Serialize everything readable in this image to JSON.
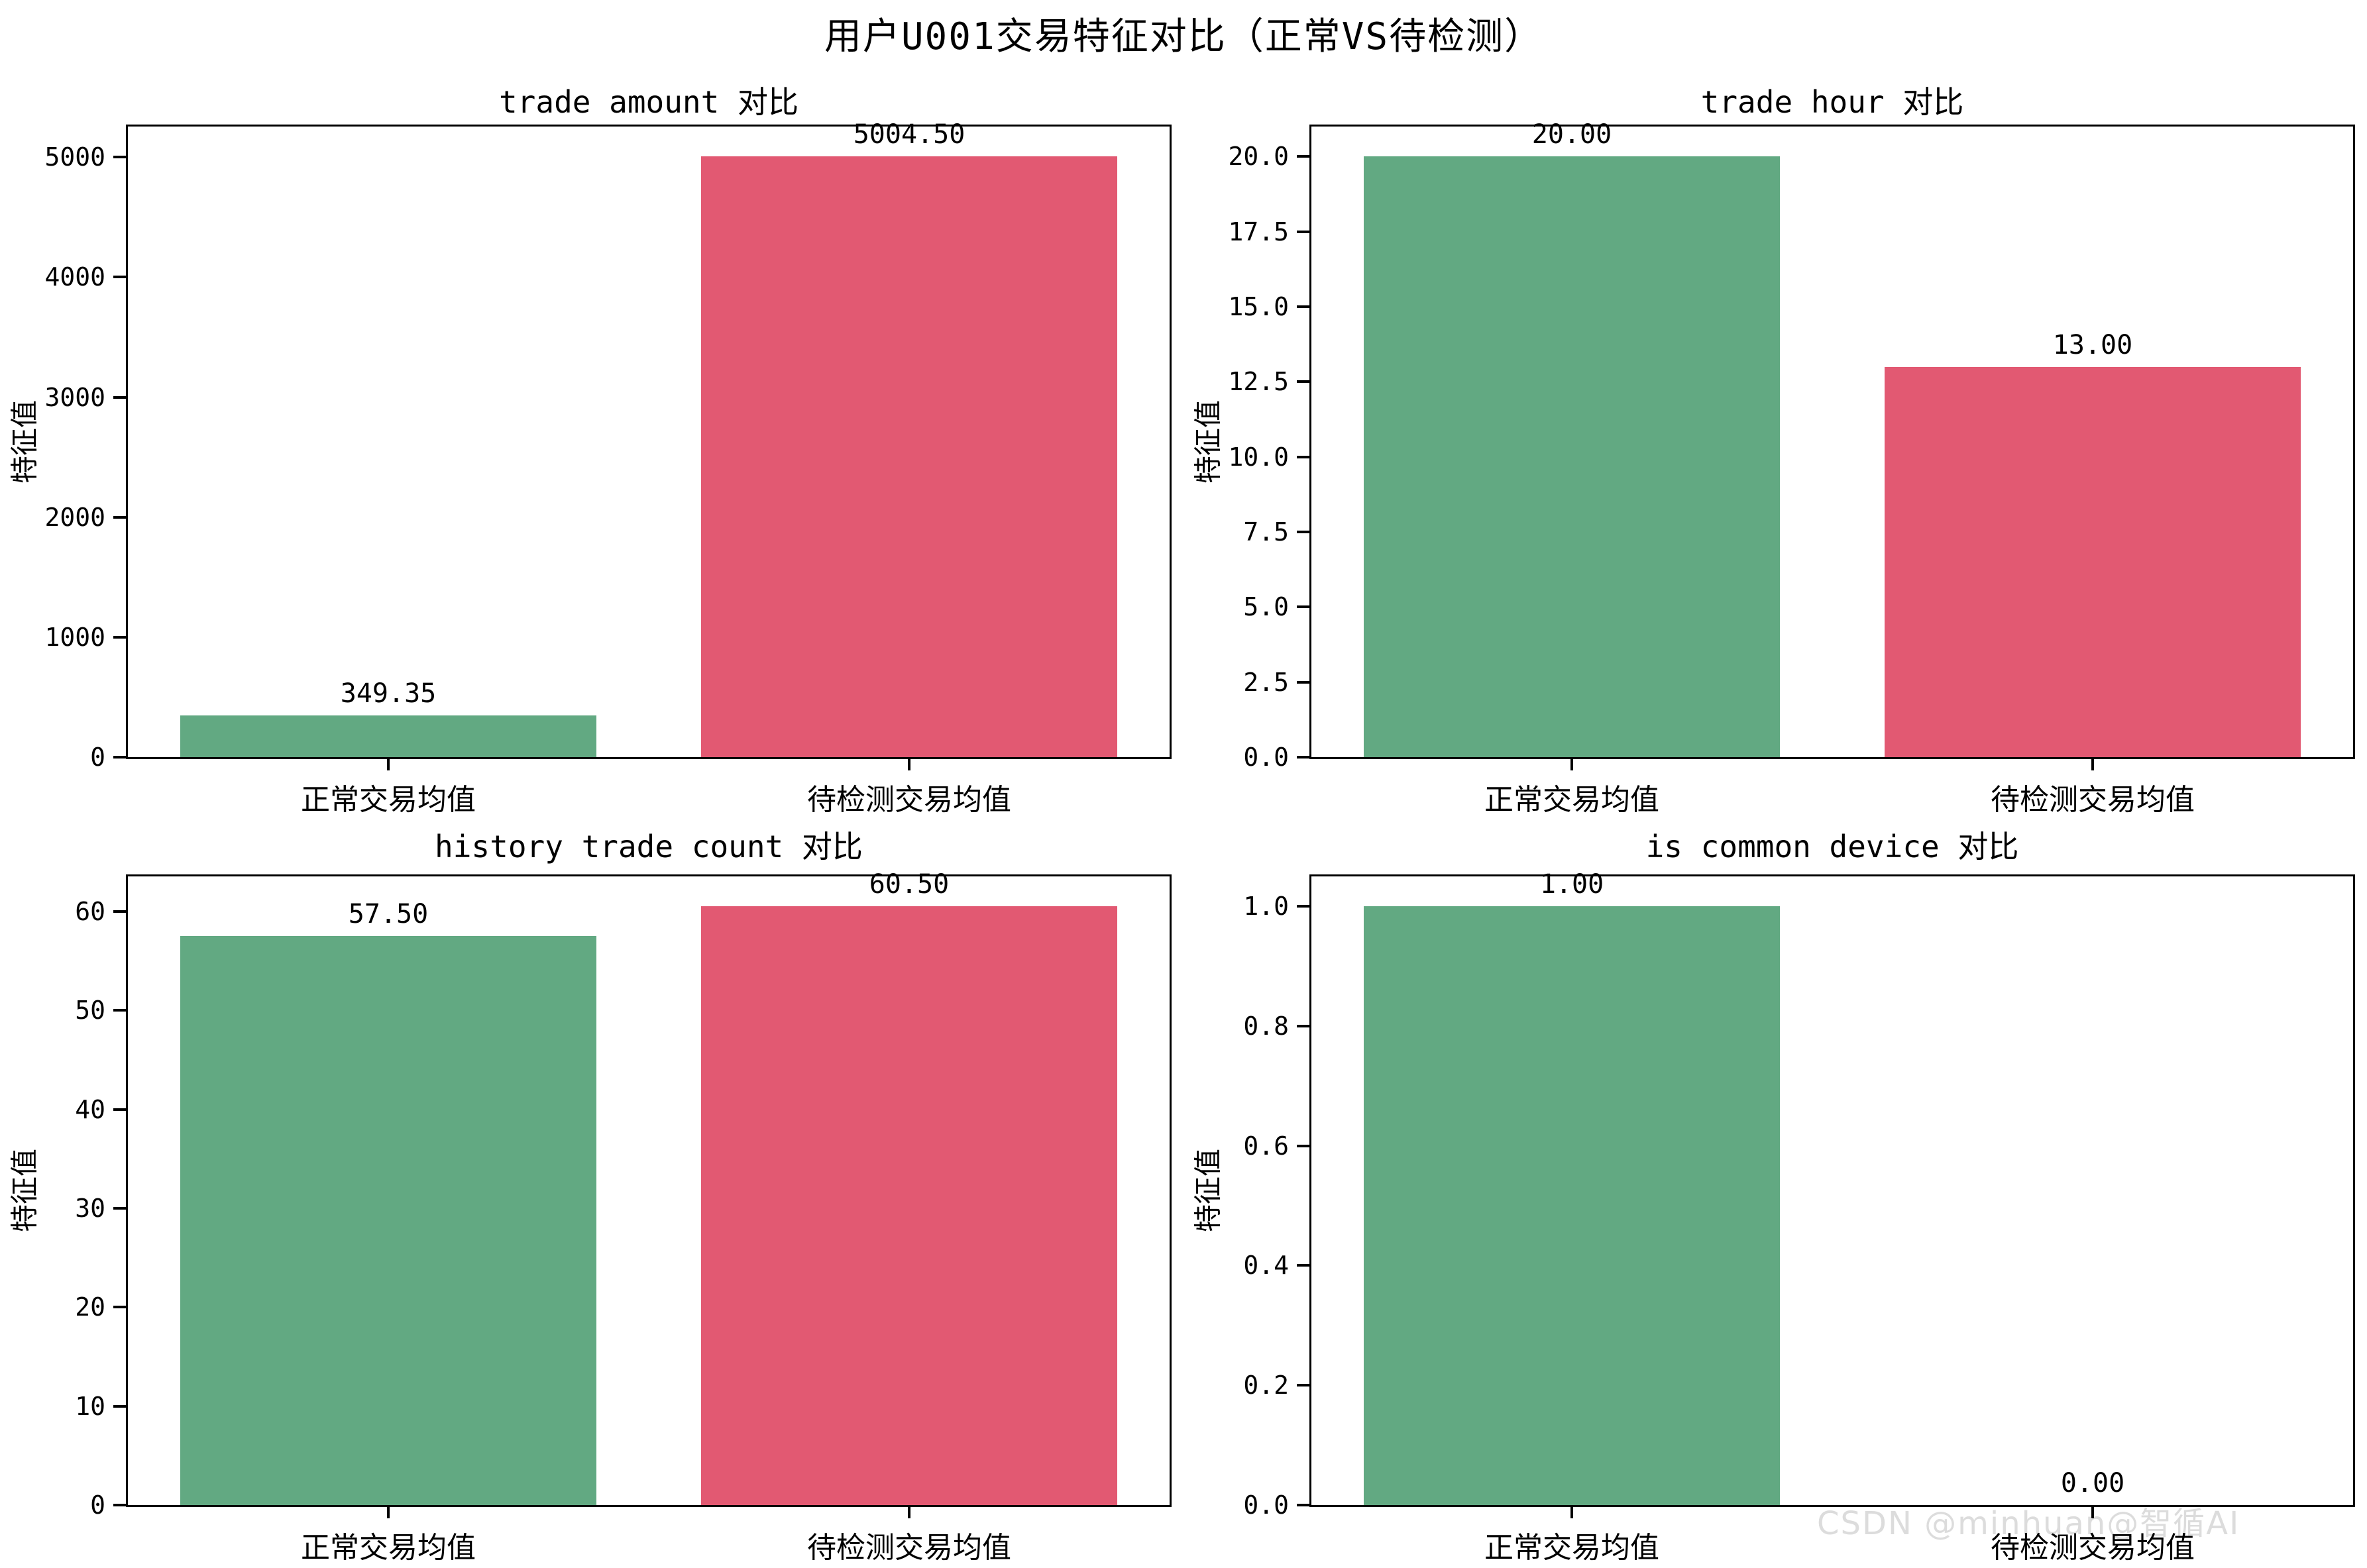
{
  "figure": {
    "title": "用户U001交易特征对比（正常VS待检测）",
    "watermark": "CSDN @minhuan@智循AI"
  },
  "colors": {
    "normal_bar": "#62a982",
    "suspect_bar": "#e25972",
    "axis": "#000000",
    "watermark": "#dcdcdc",
    "background": "#ffffff"
  },
  "chart_data": [
    {
      "type": "bar",
      "title": "trade amount 对比",
      "ylabel": "特征值",
      "categories": [
        "正常交易均值",
        "待检测交易均值"
      ],
      "values": [
        349.35,
        5004.5
      ],
      "value_labels": [
        "349.35",
        "5004.50"
      ],
      "series_colors": [
        "normal_bar",
        "suspect_bar"
      ],
      "yticks": [
        0,
        1000,
        2000,
        3000,
        4000,
        5000
      ],
      "ytick_labels": [
        "0",
        "1000",
        "2000",
        "3000",
        "4000",
        "5000"
      ],
      "ylim": [
        0,
        5254.73
      ],
      "grid": false,
      "legend_position": "none"
    },
    {
      "type": "bar",
      "title": "trade hour 对比",
      "ylabel": "特征值",
      "categories": [
        "正常交易均值",
        "待检测交易均值"
      ],
      "values": [
        20,
        13
      ],
      "value_labels": [
        "20.00",
        "13.00"
      ],
      "series_colors": [
        "normal_bar",
        "suspect_bar"
      ],
      "yticks": [
        0,
        2.5,
        5,
        7.5,
        10,
        12.5,
        15,
        17.5,
        20
      ],
      "ytick_labels": [
        "0.0",
        "2.5",
        "5.0",
        "7.5",
        "10.0",
        "12.5",
        "15.0",
        "17.5",
        "20.0"
      ],
      "ylim": [
        0,
        21
      ],
      "grid": false,
      "legend_position": "none"
    },
    {
      "type": "bar",
      "title": "history trade count 对比",
      "ylabel": "特征值",
      "categories": [
        "正常交易均值",
        "待检测交易均值"
      ],
      "values": [
        57.5,
        60.5
      ],
      "value_labels": [
        "57.50",
        "60.50"
      ],
      "series_colors": [
        "normal_bar",
        "suspect_bar"
      ],
      "yticks": [
        0,
        10,
        20,
        30,
        40,
        50,
        60
      ],
      "ytick_labels": [
        "0",
        "10",
        "20",
        "30",
        "40",
        "50",
        "60"
      ],
      "ylim": [
        0,
        63.53
      ],
      "grid": false,
      "legend_position": "none"
    },
    {
      "type": "bar",
      "title": "is common device 对比",
      "ylabel": "特征值",
      "categories": [
        "正常交易均值",
        "待检测交易均值"
      ],
      "values": [
        1,
        0
      ],
      "value_labels": [
        "1.00",
        "0.00"
      ],
      "series_colors": [
        "normal_bar",
        "suspect_bar"
      ],
      "yticks": [
        0,
        0.2,
        0.4,
        0.6,
        0.8,
        1.0
      ],
      "ytick_labels": [
        "0.0",
        "0.2",
        "0.4",
        "0.6",
        "0.8",
        "1.0"
      ],
      "ylim": [
        0,
        1.05
      ],
      "grid": false,
      "legend_position": "none"
    }
  ]
}
